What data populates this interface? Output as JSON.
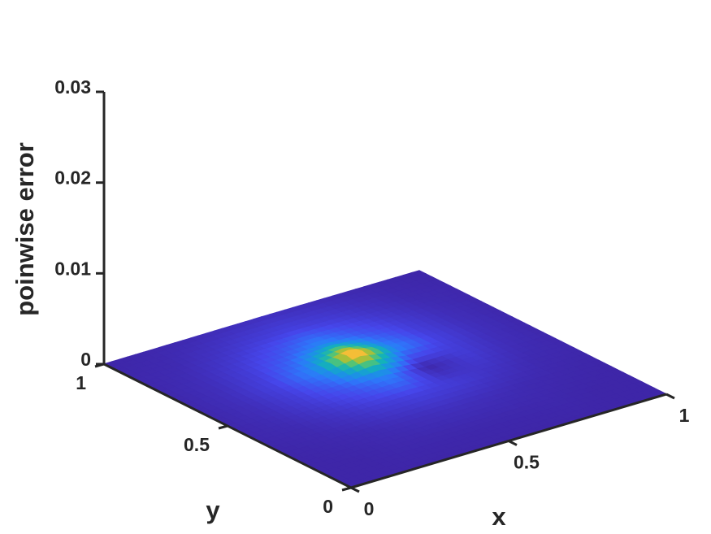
{
  "chart_data": {
    "type": "surface",
    "xlabel": "x",
    "ylabel": "y",
    "zlabel": "poinwise error",
    "xlim": [
      0,
      1
    ],
    "ylim": [
      0,
      1
    ],
    "zlim": [
      0,
      0.03
    ],
    "xticks": [
      0,
      0.5,
      1
    ],
    "yticks": [
      0,
      0.5,
      1
    ],
    "zticks": [
      0,
      0.01,
      0.02,
      0.03
    ],
    "colormap": "parula",
    "x": [
      0,
      0.125,
      0.25,
      0.375,
      0.5,
      0.625,
      0.75,
      0.875,
      1
    ],
    "y": [
      0,
      0.125,
      0.25,
      0.375,
      0.5,
      0.625,
      0.75,
      0.875,
      1
    ],
    "z": [
      [
        3e-05,
        3e-05,
        3e-05,
        3e-05,
        3e-05,
        3e-05,
        3e-05,
        3e-05,
        3e-05
      ],
      [
        3e-05,
        3e-05,
        4e-05,
        4e-05,
        4e-05,
        4e-05,
        4e-05,
        3e-05,
        3e-05
      ],
      [
        3e-05,
        4e-05,
        5e-05,
        7e-05,
        8e-05,
        7e-05,
        5e-05,
        4e-05,
        3e-05
      ],
      [
        4e-05,
        5e-05,
        9e-05,
        0.00014,
        0.00017,
        0.00014,
        9e-05,
        5e-05,
        4e-05
      ],
      [
        4e-05,
        7e-05,
        0.00014,
        0.00025,
        0.00042,
        3e-05,
        0.00014,
        7e-05,
        4e-05
      ],
      [
        4e-05,
        8e-05,
        0.00017,
        0.00042,
        0.00133,
        0.00042,
        0.00017,
        8e-05,
        4e-05
      ],
      [
        4e-05,
        7e-05,
        0.00014,
        0.00025,
        0.00042,
        0.00025,
        0.00014,
        7e-05,
        4e-05
      ],
      [
        4e-05,
        5e-05,
        9e-05,
        0.00014,
        0.00017,
        0.00014,
        9e-05,
        5e-05,
        4e-05
      ],
      [
        3e-05,
        4e-05,
        5e-05,
        7e-05,
        8e-05,
        7e-05,
        5e-05,
        4e-05,
        3e-05
      ]
    ]
  }
}
